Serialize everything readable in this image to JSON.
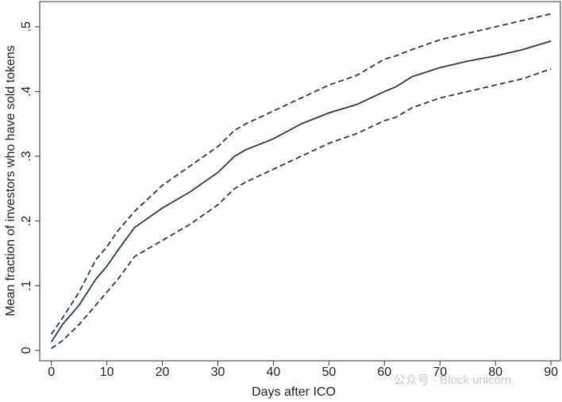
{
  "chart_data": {
    "type": "line",
    "x_label": "Days after ICO",
    "y_label": "Mean fraction of investors who have sold tokens",
    "watermark": "公众号 · Block unicorn",
    "x": [
      0,
      2,
      5,
      8,
      10,
      12,
      15,
      20,
      25,
      30,
      33,
      35,
      40,
      45,
      50,
      55,
      60,
      62,
      65,
      70,
      75,
      80,
      85,
      90
    ],
    "series": [
      {
        "name": "Mean",
        "color": "#2b3a48",
        "dash": false,
        "values": [
          0.013,
          0.04,
          0.07,
          0.11,
          0.13,
          0.155,
          0.19,
          0.22,
          0.245,
          0.275,
          0.3,
          0.31,
          0.327,
          0.35,
          0.367,
          0.38,
          0.4,
          0.407,
          0.423,
          0.437,
          0.447,
          0.455,
          0.465,
          0.478
        ]
      },
      {
        "name": "Upper",
        "color": "#2b3a48",
        "dash": true,
        "values": [
          0.025,
          0.05,
          0.09,
          0.14,
          0.16,
          0.185,
          0.215,
          0.255,
          0.285,
          0.315,
          0.34,
          0.35,
          0.37,
          0.39,
          0.41,
          0.425,
          0.45,
          0.455,
          0.465,
          0.48,
          0.49,
          0.5,
          0.51,
          0.52
        ]
      },
      {
        "name": "Lower",
        "color": "#2b3a48",
        "dash": true,
        "values": [
          0.003,
          0.015,
          0.04,
          0.07,
          0.09,
          0.11,
          0.145,
          0.17,
          0.195,
          0.225,
          0.25,
          0.26,
          0.28,
          0.3,
          0.32,
          0.335,
          0.355,
          0.36,
          0.375,
          0.39,
          0.4,
          0.41,
          0.42,
          0.435
        ]
      }
    ],
    "xlim": [
      -2.1,
      91.7
    ],
    "ylim": [
      -0.016,
      0.539
    ],
    "xticks": [
      0,
      10,
      20,
      30,
      40,
      50,
      60,
      70,
      80,
      90
    ],
    "yticks": [
      0,
      {
        "value": 0.1,
        "label": ".1"
      },
      {
        "value": 0.2,
        "label": ".2"
      },
      {
        "value": 0.3,
        "label": ".3"
      },
      {
        "value": 0.4,
        "label": ".4"
      },
      {
        "value": 0.5,
        "label": ".5"
      }
    ],
    "grid": false,
    "legend": false
  }
}
